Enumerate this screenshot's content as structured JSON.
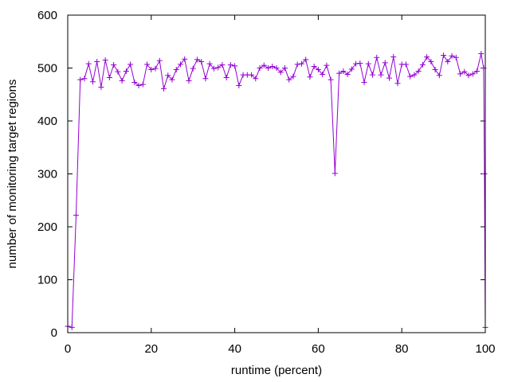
{
  "chart_data": {
    "type": "line",
    "xlabel": "runtime (percent)",
    "ylabel": "number of monitoring target regions",
    "xlim": [
      0,
      100
    ],
    "ylim": [
      0,
      600
    ],
    "xticks": [
      0,
      20,
      40,
      60,
      80,
      100
    ],
    "yticks": [
      0,
      100,
      200,
      300,
      400,
      500,
      600
    ],
    "marker": "+",
    "grid": false,
    "colors": {
      "series": "#9400D3",
      "axis": "#000000"
    },
    "series": [
      {
        "x": [
          0,
          1,
          2,
          3,
          4,
          5,
          6,
          7,
          8,
          9,
          10,
          11,
          12,
          13,
          14,
          15,
          16,
          17,
          18,
          19,
          20,
          21,
          22,
          23,
          24,
          25,
          26,
          27,
          28,
          29,
          30,
          31,
          32,
          33,
          34,
          35,
          36,
          37,
          38,
          39,
          40,
          41,
          42,
          43,
          44,
          45,
          46,
          47,
          48,
          49,
          50,
          51,
          52,
          53,
          54,
          55,
          56,
          57,
          58,
          59,
          60,
          61,
          62,
          63,
          64,
          65,
          66,
          67,
          68,
          69,
          70,
          71,
          72,
          73,
          74,
          75,
          76,
          77,
          78,
          79,
          80,
          81,
          82,
          83,
          84,
          85,
          86,
          87,
          88,
          89,
          90,
          91,
          92,
          93,
          94,
          95,
          96,
          97,
          98,
          99,
          99.6,
          99.8,
          100
        ],
        "y": [
          12,
          10,
          222,
          478,
          480,
          508,
          474,
          512,
          464,
          515,
          482,
          506,
          493,
          476,
          494,
          507,
          473,
          467,
          469,
          507,
          497,
          499,
          514,
          461,
          486,
          478,
          497,
          507,
          517,
          476,
          499,
          516,
          512,
          480,
          508,
          499,
          501,
          506,
          482,
          506,
          504,
          467,
          487,
          487,
          487,
          480,
          500,
          505,
          500,
          503,
          500,
          492,
          500,
          478,
          484,
          507,
          508,
          516,
          483,
          503,
          497,
          488,
          505,
          478,
          301,
          490,
          494,
          488,
          498,
          508,
          509,
          473,
          508,
          487,
          520,
          487,
          510,
          481,
          521,
          471,
          507,
          507,
          484,
          487,
          494,
          506,
          521,
          512,
          497,
          486,
          524,
          512,
          523,
          520,
          489,
          493,
          486,
          489,
          494,
          527,
          500,
          300,
          10
        ]
      }
    ]
  }
}
